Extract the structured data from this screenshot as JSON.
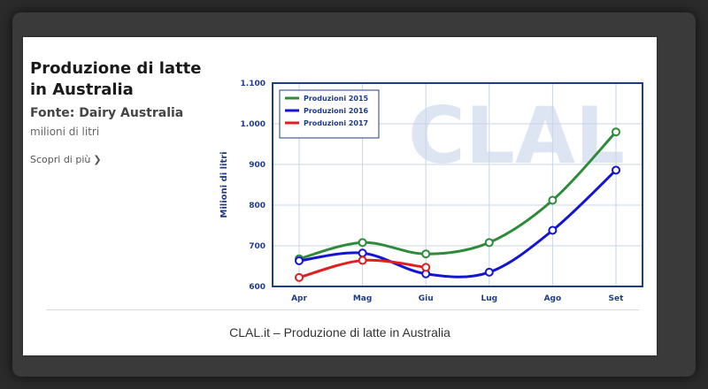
{
  "panel": {
    "title": "Produzione di latte in Australia",
    "source": "Fonte: Dairy Australia",
    "unit": "milioni di litri",
    "more_label": "Scopri di più"
  },
  "caption": "CLAL.it – Produzione di latte in Australia",
  "watermark": "CLAL",
  "colors": {
    "frame": "#1f3c88",
    "grid": "#c9d4e8",
    "text": "#1f3c88"
  },
  "chart_data": {
    "type": "line",
    "title": "",
    "xlabel": "",
    "ylabel": "Milioni di litri",
    "categories": [
      "Apr",
      "Mag",
      "Giu",
      "Lug",
      "Ago",
      "Set"
    ],
    "ylim": [
      600,
      1100
    ],
    "yticks": [
      600,
      700,
      800,
      900,
      1000,
      1100
    ],
    "ytick_labels": [
      "600",
      "700",
      "800",
      "900",
      "1.000",
      "1.100"
    ],
    "grid": true,
    "legend": "top-left",
    "series": [
      {
        "name": "Produzioni 2015",
        "color": "#2e8b3a",
        "values": [
          668,
          708,
          680,
          708,
          812,
          980
        ]
      },
      {
        "name": "Produzioni 2016",
        "color": "#1414d4",
        "values": [
          663,
          682,
          631,
          635,
          738,
          886
        ]
      },
      {
        "name": "Produzioni 2017",
        "color": "#e01f1f",
        "values": [
          622,
          664,
          647,
          null,
          null,
          null
        ]
      }
    ]
  }
}
